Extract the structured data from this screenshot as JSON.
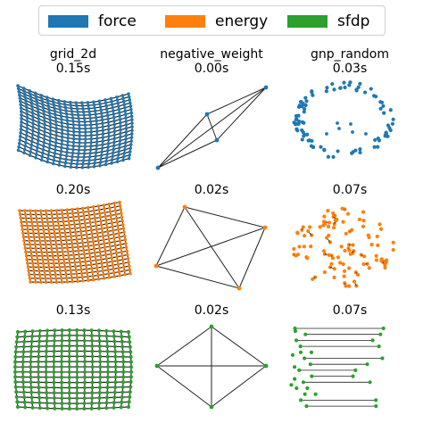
{
  "legend": {
    "items": [
      {
        "label": "force",
        "color": "#1f77b4"
      },
      {
        "label": "energy",
        "color": "#ff7f0e"
      },
      {
        "label": "sfdp",
        "color": "#2ca02c"
      }
    ]
  },
  "columns": [
    {
      "name": "grid_2d"
    },
    {
      "name": "negative_weight"
    },
    {
      "name": "gnp_random"
    }
  ],
  "panels": [
    {
      "row": 0,
      "col": 0,
      "method": "force",
      "graph": "grid_2d",
      "time": "0.15s"
    },
    {
      "row": 0,
      "col": 1,
      "method": "force",
      "graph": "negative_weight",
      "time": "0.00s"
    },
    {
      "row": 0,
      "col": 2,
      "method": "force",
      "graph": "gnp_random",
      "time": "0.03s"
    },
    {
      "row": 1,
      "col": 0,
      "method": "energy",
      "graph": "grid_2d",
      "time": "0.20s"
    },
    {
      "row": 1,
      "col": 1,
      "method": "energy",
      "graph": "negative_weight",
      "time": "0.02s"
    },
    {
      "row": 1,
      "col": 2,
      "method": "energy",
      "graph": "gnp_random",
      "time": "0.07s"
    },
    {
      "row": 2,
      "col": 0,
      "method": "sfdp",
      "graph": "grid_2d",
      "time": "0.13s"
    },
    {
      "row": 2,
      "col": 1,
      "method": "sfdp",
      "graph": "negative_weight",
      "time": "0.02s"
    },
    {
      "row": 2,
      "col": 2,
      "method": "sfdp",
      "graph": "gnp_random",
      "time": "0.07s"
    }
  ]
}
